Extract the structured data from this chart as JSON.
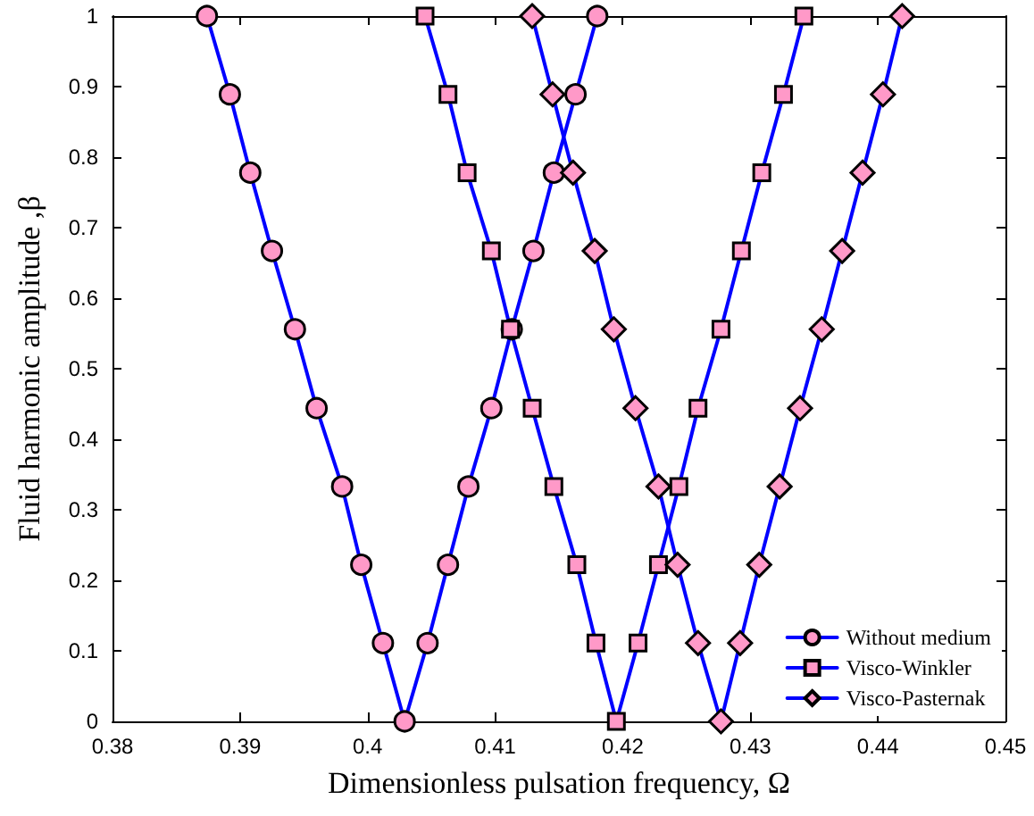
{
  "chart_data": {
    "type": "line",
    "xlabel": "Dimensionless pulsation frequency, Ω",
    "ylabel": "Fluid harmonic amplitude ,β",
    "xlim": [
      0.38,
      0.45
    ],
    "xticks": [
      0.38,
      0.39,
      {
        "value": 0.4,
        "label": "0.4"
      },
      0.41,
      0.42,
      0.43,
      0.44,
      0.45
    ],
    "ylim": [
      0,
      1
    ],
    "yticks": [
      0,
      0.1,
      0.2,
      0.3,
      0.4,
      0.5,
      0.6,
      0.7,
      0.8,
      0.9,
      1
    ],
    "grid": false,
    "legend": "bottom right",
    "line_style": "solid",
    "series": [
      {
        "name": "Without medium",
        "color": "#0000ff",
        "marker": "circle",
        "x": [
          0.3874,
          0.3892,
          0.3908,
          0.3925,
          0.3943,
          0.396,
          0.398,
          0.3995,
          0.4012,
          0.4029,
          0.4047,
          0.4063,
          0.4079,
          0.4097,
          0.4113,
          0.413,
          0.4146,
          0.4163,
          0.418
        ],
        "values": [
          1,
          0.889,
          0.778,
          0.667,
          0.556,
          0.444,
          0.333,
          0.222,
          0.111,
          0,
          0.111,
          0.222,
          0.333,
          0.444,
          0.556,
          0.667,
          0.778,
          0.889,
          1
        ]
      },
      {
        "name": "Visco-Winkler",
        "color": "#0000ff",
        "marker": "square",
        "x": [
          0.4045,
          0.4063,
          0.4078,
          0.4097,
          0.4112,
          0.4129,
          0.4146,
          0.4164,
          0.4179,
          0.4195,
          0.4212,
          0.4228,
          0.4244,
          0.4259,
          0.4277,
          0.4293,
          0.4309,
          0.4326,
          0.4342
        ],
        "values": [
          1,
          0.889,
          0.778,
          0.667,
          0.556,
          0.444,
          0.333,
          0.222,
          0.111,
          0,
          0.111,
          0.222,
          0.333,
          0.444,
          0.556,
          0.667,
          0.778,
          0.889,
          1
        ]
      },
      {
        "name": "Visco-Pasternak",
        "color": "#0000ff",
        "marker": "diamond",
        "x": [
          0.4129,
          0.4145,
          0.4161,
          0.4178,
          0.4193,
          0.421,
          0.4228,
          0.4243,
          0.4259,
          0.4277,
          0.4292,
          0.4307,
          0.4323,
          0.4339,
          0.4356,
          0.4372,
          0.4388,
          0.4404,
          0.4419
        ],
        "values": [
          1,
          0.889,
          0.778,
          0.667,
          0.556,
          0.444,
          0.333,
          0.222,
          0.111,
          0,
          0.111,
          0.222,
          0.333,
          0.444,
          0.556,
          0.667,
          0.778,
          0.889,
          1
        ]
      }
    ]
  }
}
